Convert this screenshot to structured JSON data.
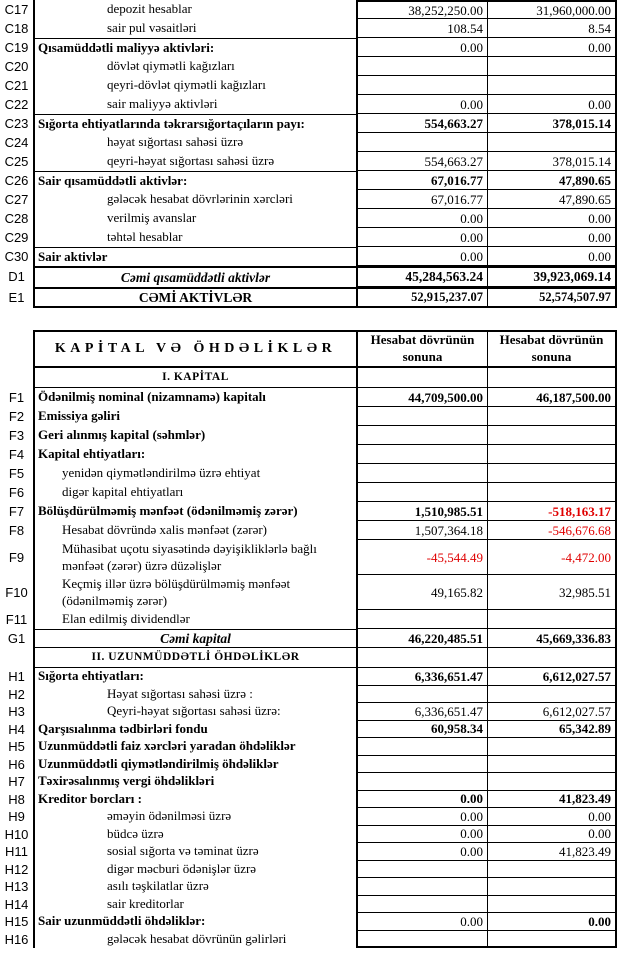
{
  "colors": {
    "text": "#000000",
    "border": "#000000",
    "negative_value": "#e00000"
  },
  "balance_sheet": {
    "assets_table": {
      "rows": [
        {
          "code": "C17",
          "label": "depozit hesablar",
          "type": "item",
          "v1": "38,252,250.00",
          "v2": "31,960,000.00"
        },
        {
          "code": "C18",
          "label": "sair pul vəsaitləri",
          "type": "item",
          "v1": "108.54",
          "v2": "8.54"
        },
        {
          "code": "C19",
          "label": "Qısamüddətli maliyyə aktivləri:",
          "type": "group",
          "v1": "0.00",
          "v2": "0.00"
        },
        {
          "code": "C20",
          "label": "dövlət qiymətli kağızları",
          "type": "item",
          "v1": "",
          "v2": ""
        },
        {
          "code": "C21",
          "label": "qeyri-dövlət qiymətli kağızları",
          "type": "item",
          "v1": "",
          "v2": ""
        },
        {
          "code": "C22",
          "label": "sair maliyyə aktivləri",
          "type": "item",
          "v1": "0.00",
          "v2": "0.00"
        },
        {
          "code": "C23",
          "label": "Sığorta ehtiyatlarında təkrarsığortaçıların payı:",
          "type": "group",
          "v1": "554,663.27",
          "v2": "378,015.14",
          "vb1": true,
          "vb2": true
        },
        {
          "code": "C24",
          "label": "həyat sığortası sahəsi üzrə",
          "type": "item",
          "v1": "",
          "v2": ""
        },
        {
          "code": "C25",
          "label": "qeyri-həyat sığortası sahəsi üzrə",
          "type": "item",
          "v1": "554,663.27",
          "v2": "378,015.14"
        },
        {
          "code": "C26",
          "label": "Sair qısamüddətli aktivlər:",
          "type": "group",
          "v1": "67,016.77",
          "v2": "47,890.65",
          "vb1": true,
          "vb2": true
        },
        {
          "code": "C27",
          "label": "gələcək hesabat dövrlərinin xərcləri",
          "type": "item",
          "v1": "67,016.77",
          "v2": "47,890.65"
        },
        {
          "code": "C28",
          "label": "verilmiş avanslar",
          "type": "item",
          "v1": "0.00",
          "v2": "0.00"
        },
        {
          "code": "C29",
          "label": "təhtəl hesablar",
          "type": "item",
          "v1": "0.00",
          "v2": "0.00"
        },
        {
          "code": "C30",
          "label": "Sair aktivlər",
          "type": "group",
          "v1": "0.00",
          "v2": "0.00"
        },
        {
          "code": "D1",
          "label": "Cəmi qısamüddətli aktivlər",
          "type": "total",
          "italic": true,
          "v1": "45,284,563.24",
          "v2": "39,923,069.14",
          "vb1": true,
          "vb2": true
        },
        {
          "code": "E1",
          "label": "CƏMİ AKTİVLƏR",
          "type": "total",
          "v1": "52,915,237.07",
          "v2": "52,574,507.97",
          "vb1": true,
          "vb2": true
        }
      ]
    },
    "liabilities_table": {
      "header": {
        "title": "KAPİTAL VƏ ÖHDƏLİKLƏR",
        "col1": "Hesabat dövrünün sonuna",
        "col2": "Hesabat dövrünün sonuna"
      },
      "rows": [
        {
          "code": "",
          "label": "I. KAPİTAL",
          "type": "section",
          "v1": "",
          "v2": ""
        },
        {
          "code": "F1",
          "label": "Ödənilmiş nominal (nizamnamə) kapitalı",
          "type": "group",
          "v1": "44,709,500.00",
          "v2": "46,187,500.00",
          "vb1": true,
          "vb2": true
        },
        {
          "code": "F2",
          "label": "Emissiya gəliri",
          "type": "group",
          "v1": "",
          "v2": ""
        },
        {
          "code": "F3",
          "label": "Geri alınmış kapital (səhmlər)",
          "type": "group",
          "v1": "",
          "v2": ""
        },
        {
          "code": "F4",
          "label": "Kapital ehtiyatları:",
          "type": "group",
          "v1": "",
          "v2": ""
        },
        {
          "code": "F5",
          "label": "yenidən qiymətləndirilmə üzrə ehtiyat",
          "type": "item",
          "v1": "",
          "v2": ""
        },
        {
          "code": "F6",
          "label": "digər kapital ehtiyatları",
          "type": "item",
          "v1": "",
          "v2": ""
        },
        {
          "code": "F7",
          "label": "Bölüşdürülməmiş mənfəət (ödənilməmiş zərər)",
          "type": "group",
          "v1": "1,510,985.51",
          "v2": "-518,163.17",
          "vb1": true,
          "vb2": true
        },
        {
          "code": "F8",
          "label": "Hesabat dövründə xalis mənfəət (zərər)",
          "type": "item",
          "v1": "1,507,364.18",
          "v2": "-546,676.68"
        },
        {
          "code": "F9",
          "label": "Mühasibat uçotu siyasətində dəyişikliklərlə bağlı mənfəət (zərər) üzrə düzəlişlər",
          "type": "item",
          "wrap": true,
          "v1": "-45,544.49",
          "v2": "-4,472.00"
        },
        {
          "code": "F10",
          "label": "Keçmiş illər üzrə bölüşdürülməmiş mənfəət (ödənilməmiş zərər)",
          "type": "item",
          "wrap": true,
          "v1": "49,165.82",
          "v2": "32,985.51"
        },
        {
          "code": "F11",
          "label": "Elan edilmiş dividendlər",
          "type": "item",
          "v1": "",
          "v2": ""
        },
        {
          "code": "G1",
          "label": "Cəmi kapital",
          "type": "total",
          "italic": true,
          "v1": "46,220,485.51",
          "v2": "45,669,336.83",
          "vb1": true,
          "vb2": true
        },
        {
          "code": "",
          "label": "II. UZUNMÜDDƏTLİ ÖHDƏLİKLƏR",
          "type": "section",
          "v1": "",
          "v2": ""
        },
        {
          "code": "H1",
          "label": "Sığorta ehtiyatları:",
          "type": "group",
          "v1": "6,336,651.47",
          "v2": "6,612,027.57",
          "vb1": true,
          "vb2": true
        },
        {
          "code": "H2",
          "label": "Həyat sığortası sahəsi üzrə :",
          "type": "item",
          "v1": "",
          "v2": ""
        },
        {
          "code": "H3",
          "label": "Qeyri-həyat sığortası sahəsi üzrə:",
          "type": "item",
          "v1": "6,336,651.47",
          "v2": "6,612,027.57"
        },
        {
          "code": "H4",
          "label": "Qarşısıalınma tədbirləri fondu",
          "type": "group",
          "v1": "60,958.34",
          "v2": "65,342.89",
          "vb1": true,
          "vb2": true
        },
        {
          "code": "H5",
          "label": "Uzunmüddətli faiz xərcləri yaradan öhdəliklər",
          "type": "group",
          "v1": "",
          "v2": ""
        },
        {
          "code": "H6",
          "label": "Uzunmüddətli qiymətləndirilmiş öhdəliklər",
          "type": "group",
          "v1": "",
          "v2": ""
        },
        {
          "code": "H7",
          "label": "Təxirəsalınmış vergi öhdəlikləri",
          "type": "group",
          "v1": "",
          "v2": ""
        },
        {
          "code": "H8",
          "label": "Kreditor borcları :",
          "type": "group",
          "v1": "0.00",
          "v2": "41,823.49",
          "vb1": true,
          "vb2": true
        },
        {
          "code": "H9",
          "label": "əməyin ödənilməsi üzrə",
          "type": "item",
          "v1": "0.00",
          "v2": "0.00"
        },
        {
          "code": "H10",
          "label": "büdcə üzrə",
          "type": "item",
          "v1": "0.00",
          "v2": "0.00"
        },
        {
          "code": "H11",
          "label": "sosial sığorta və təminat üzrə",
          "type": "item",
          "v1": "0.00",
          "v2": "41,823.49"
        },
        {
          "code": "H12",
          "label": "digər məcburi ödənişlər üzrə",
          "type": "item",
          "v1": "",
          "v2": ""
        },
        {
          "code": "H13",
          "label": "asılı təşkilatlar üzrə",
          "type": "item",
          "v1": "",
          "v2": ""
        },
        {
          "code": "H14",
          "label": "sair kreditorlar",
          "type": "item",
          "v1": "",
          "v2": ""
        },
        {
          "code": "H15",
          "label": "Sair uzunmüddətli öhdəliklər:",
          "type": "group",
          "v1": "0.00",
          "v2": "0.00",
          "vb2": true
        },
        {
          "code": "H16",
          "label": "gələcək hesabat dövrünün gəlirləri",
          "type": "item",
          "v1": "",
          "v2": ""
        }
      ]
    }
  }
}
